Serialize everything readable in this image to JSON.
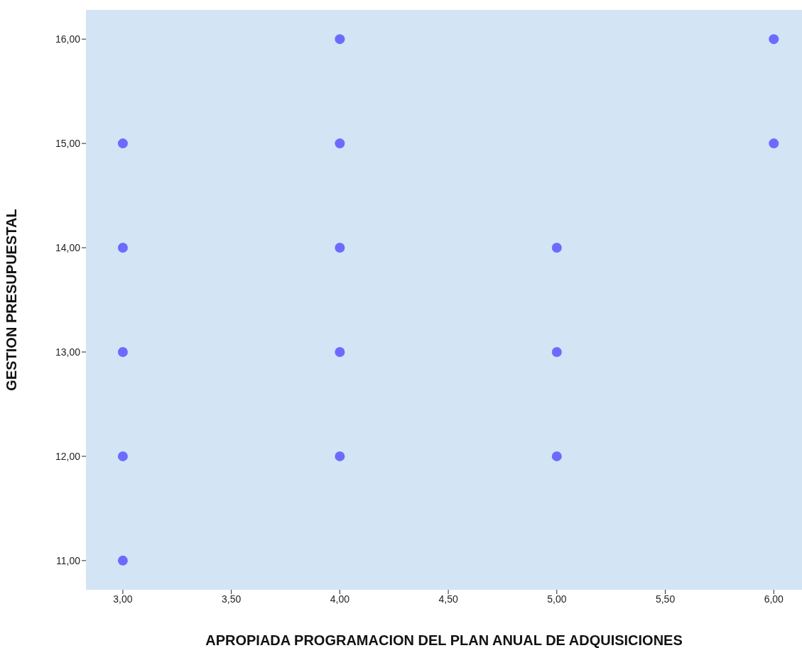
{
  "chart_data": {
    "type": "scatter",
    "xlabel": "APROPIADA PROGRAMACION DEL PLAN ANUAL DE ADQUISICIONES",
    "ylabel": "GESTION PRESUPUESTAL",
    "x": [
      3,
      3,
      3,
      3,
      3,
      4,
      4,
      4,
      4,
      4,
      5,
      5,
      5,
      6,
      6
    ],
    "values": [
      15,
      14,
      13,
      12,
      11,
      16,
      15,
      14,
      13,
      12,
      14,
      13,
      12,
      16,
      15
    ],
    "color": "#6b6bff",
    "marker": "circle",
    "xlim": [
      2.83,
      6.13
    ],
    "ylim": [
      10.72,
      16.28
    ],
    "xticks": [
      {
        "value": 3,
        "label": "3,00"
      },
      {
        "value": 3.5,
        "label": "3,50"
      },
      {
        "value": 4,
        "label": "4,00"
      },
      {
        "value": 4.5,
        "label": "4,50"
      },
      {
        "value": 5,
        "label": "5,00"
      },
      {
        "value": 5.5,
        "label": "5,50"
      },
      {
        "value": 6,
        "label": "6,00"
      }
    ],
    "yticks": [
      {
        "value": 11,
        "label": "11,00"
      },
      {
        "value": 12,
        "label": "12,00"
      },
      {
        "value": 13,
        "label": "13,00"
      },
      {
        "value": 14,
        "label": "14,00"
      },
      {
        "value": 15,
        "label": "15,00"
      },
      {
        "value": 16,
        "label": "16,00"
      }
    ]
  }
}
